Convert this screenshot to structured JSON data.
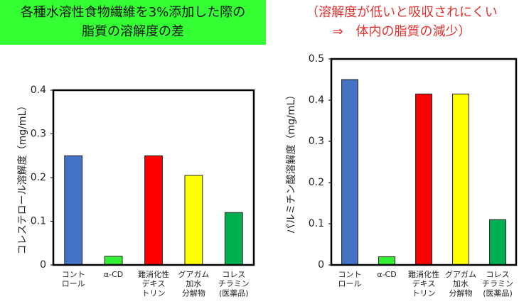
{
  "chart_data": [
    {
      "type": "bar",
      "title": [
        "各種水溶性食物繊維を3%添加した際の",
        "脂質の溶解度の差"
      ],
      "y_label": "コレステロール溶解度（mg/mL）",
      "categories": [
        "コント\nロール",
        "α-CD",
        "難消化性\nデキス\nトリン",
        "グアガム\n加水\n分解物",
        "コレス\nチラミン\n(医薬品)"
      ],
      "values": [
        0.25,
        0.02,
        0.25,
        0.205,
        0.12
      ],
      "colors": [
        "#4472c4",
        "#33ee33",
        "#ff0000",
        "#ffff00",
        "#00b050"
      ],
      "ylim": [
        0,
        0.4
      ],
      "yticks": [
        0,
        0.1,
        0.2,
        0.3,
        0.4
      ]
    },
    {
      "type": "bar",
      "title": [
        "（溶解度が低いと吸収されにくい",
        "⇒　体内の脂質の減少）"
      ],
      "y_label": "パルミチン酸溶解度（mg/mL）",
      "categories": [
        "コント\nロール",
        "α-CD",
        "難消化性\nデキス\nトリン",
        "グアガム\n加水\n分解物",
        "コレス\nチラミン\n(医薬品)"
      ],
      "values": [
        0.45,
        0.02,
        0.415,
        0.415,
        0.11
      ],
      "colors": [
        "#4472c4",
        "#33ee33",
        "#ff0000",
        "#ffff00",
        "#00b050"
      ],
      "ylim": [
        0,
        0.5
      ],
      "yticks": [
        0,
        0.1,
        0.2,
        0.3,
        0.4,
        0.5
      ]
    }
  ]
}
